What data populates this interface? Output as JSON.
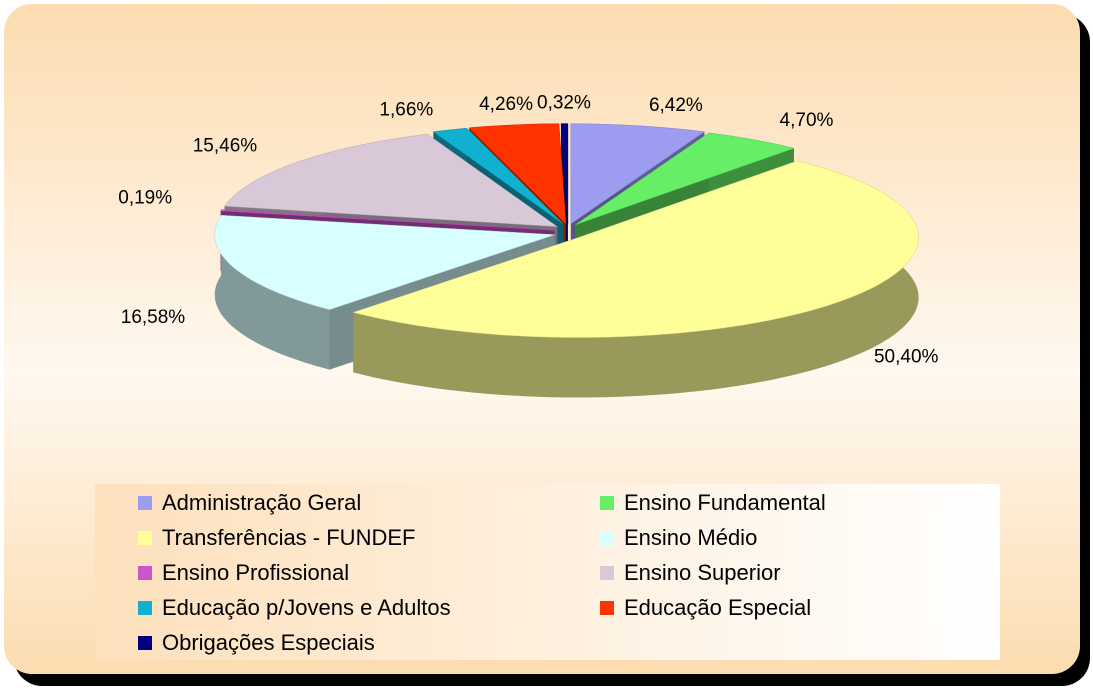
{
  "chart_data": {
    "type": "pie",
    "categories": [
      "Administração Geral",
      "Ensino Fundamental",
      "Transferências - FUNDEF",
      "Ensino Médio",
      "Ensino Profissional",
      "Ensino Superior",
      "Educação p/Jovens e Adultos",
      "Educação Especial",
      "Obrigações Especiais"
    ],
    "values": [
      6.42,
      4.7,
      50.4,
      16.58,
      0.19,
      15.46,
      1.66,
      4.26,
      0.32
    ],
    "value_labels": [
      "6,42%",
      "4,70%",
      "50,40%",
      "16,58%",
      "0,19%",
      "15,46%",
      "1,66%",
      "4,26%",
      "0,32%"
    ],
    "colors": [
      "#9c9cf0",
      "#66ee66",
      "#ffff99",
      "#d8ffff",
      "#cc55cc",
      "#d8c8d8",
      "#10b0d0",
      "#ff3300",
      "#000080"
    ],
    "legend": "bottom"
  }
}
